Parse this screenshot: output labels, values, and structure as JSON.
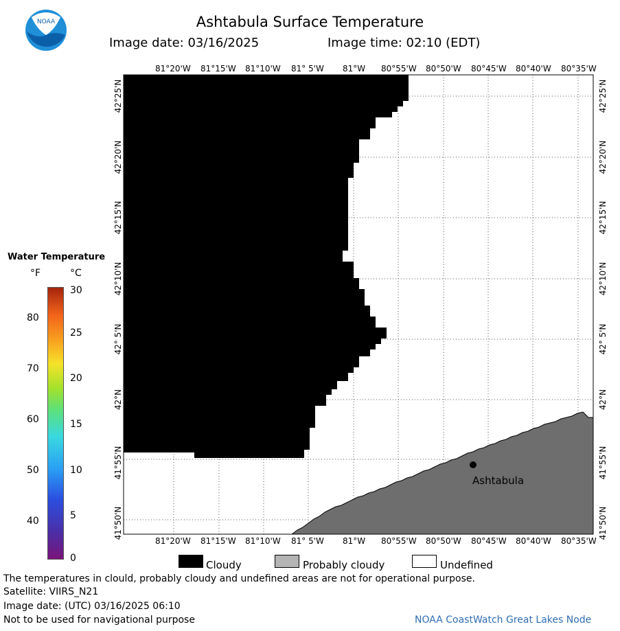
{
  "header": {
    "title": "Ashtabula Surface Temperature",
    "image_date": "Image date: 03/16/2025",
    "image_time": "Image time: 02:10 (EDT)"
  },
  "logo": {
    "text": "NOAA"
  },
  "map": {
    "lon_labels": [
      "81°20'W",
      "81°15'W",
      "81°10'W",
      "81° 5'W",
      "81°W",
      "80°55'W",
      "80°50'W",
      "80°45'W",
      "80°40'W",
      "80°35'W"
    ],
    "lat_labels": [
      "42°25'N",
      "42°20'N",
      "42°15'N",
      "42°10'N",
      "42° 5'N",
      "42°N",
      "41°55'N",
      "41°50'N"
    ],
    "city": "Ashtabula",
    "colors": {
      "cloud": "#000000",
      "land": "#6e6e6e",
      "water_undefined": "#ffffff",
      "grid": "#555555"
    }
  },
  "legend": {
    "title": "Water Temperature",
    "unit_f": "°F",
    "unit_c": "°C",
    "f_ticks": [
      "80",
      "70",
      "60",
      "50",
      "40"
    ],
    "c_ticks": [
      "30",
      "25",
      "20",
      "15",
      "10",
      "5",
      "0"
    ]
  },
  "key": {
    "cloudy": "Cloudy",
    "probably_cloudy": "Probably cloudy",
    "undefined": "Undefined",
    "colors": {
      "cloudy": "#000000",
      "probably_cloudy": "#b4b4b4",
      "undefined": "#ffffff"
    }
  },
  "footer": {
    "notice": "The temperatures in clould, probably cloudy and undefined areas are not for operational purpose.",
    "satellite": "Satellite: VIIRS_N21",
    "utc_date": "Image date: (UTC) 03/16/2025  06:10",
    "nav_warning": "Not to be used for navigational purpose",
    "node": "NOAA CoastWatch Great Lakes Node"
  }
}
